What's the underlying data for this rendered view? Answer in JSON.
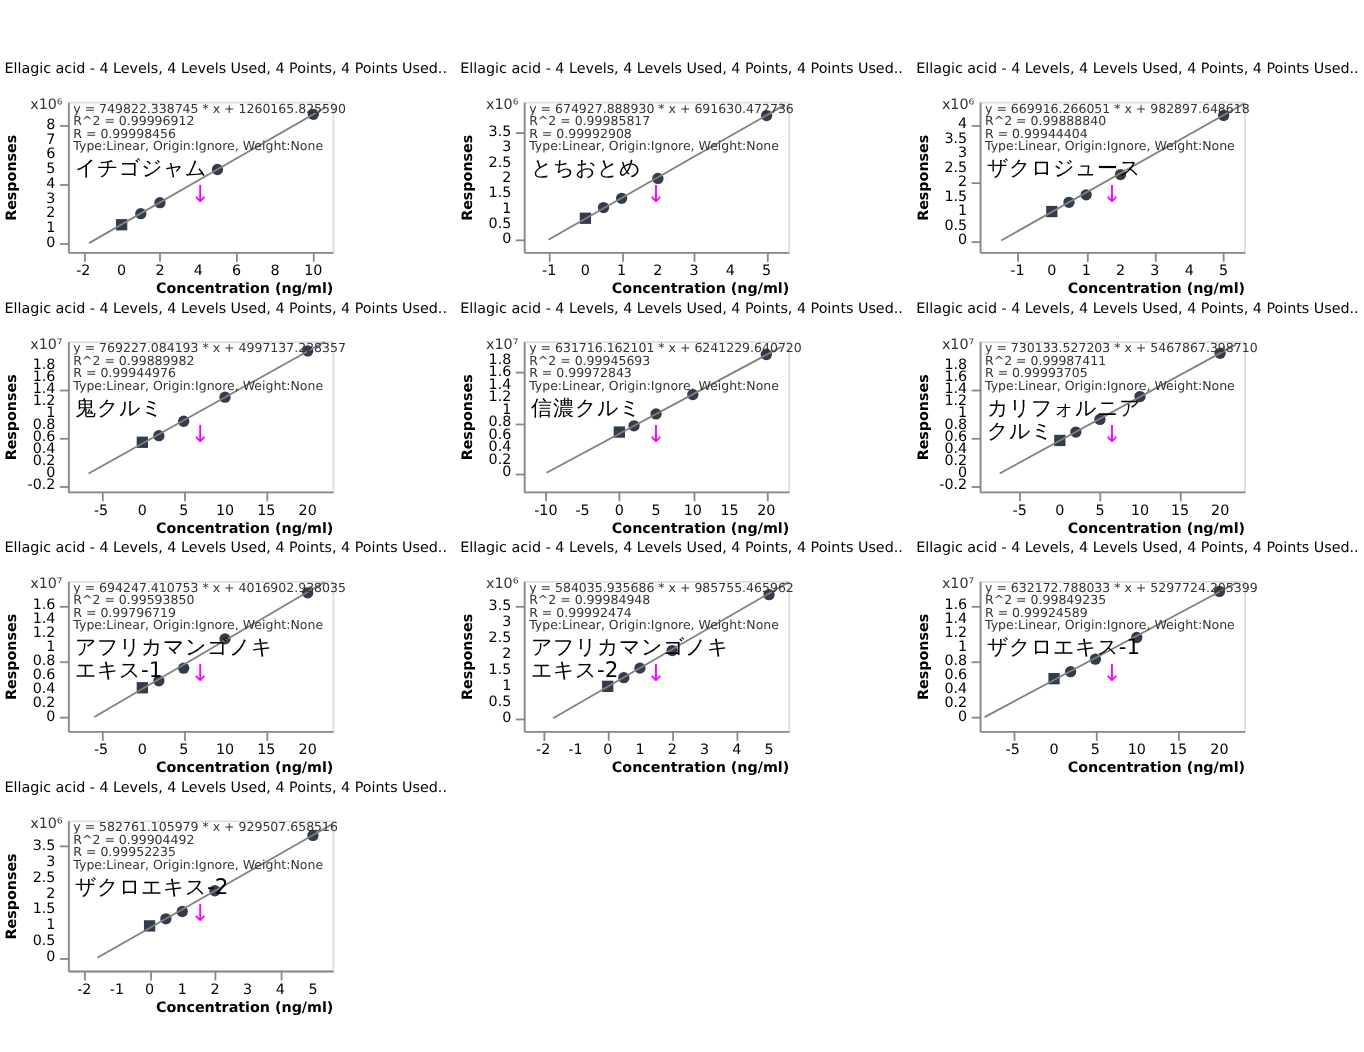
{
  "chart_data": [
    {
      "type": "scatter",
      "title": "Ellagic acid - 4 Levels, 4 Levels Used, 4 Points, 4 Points Used..",
      "xlabel": "Concentration (ng/ml)",
      "ylabel": "Responses",
      "xlim": [
        -2.8,
        11
      ],
      "xticks": [
        -2,
        0,
        2,
        4,
        6,
        8,
        10
      ],
      "ylim": [
        -0.6,
        9.6
      ],
      "yticks": [
        0,
        1,
        2,
        3,
        4,
        5,
        6,
        7,
        8
      ],
      "series": [
        {
          "type": "scatter",
          "marker": "square",
          "color": "#333c4c",
          "x": [
            0
          ],
          "values": [
            1.25
          ]
        },
        {
          "type": "scatter",
          "marker": "circle",
          "color": "#333c4c",
          "x": [
            1,
            2,
            5,
            10
          ],
          "values": [
            2.0,
            2.75,
            5.0,
            8.75
          ]
        },
        {
          "type": "line",
          "color": "#808080",
          "x": [
            -1.7,
            10.6
          ],
          "values": [
            0,
            9.2
          ]
        }
      ],
      "annotations": [
        "x10⁶",
        "y = 749822.338745 * x  + 1260165.825590",
        "R^2 = 0.99996912",
        "R = 0.99998456",
        "Type:Linear, Origin:Ignore, Weight:None",
        "イチゴジャム",
        "↓"
      ]
    },
    {
      "type": "scatter",
      "title": "Ellagic acid - 4 Levels, 4 Levels Used, 4 Points, 4 Points Used..",
      "xlabel": "Concentration (ng/ml)",
      "ylabel": "Responses",
      "xlim": [
        -1.7,
        5.6
      ],
      "xticks": [
        -1,
        0,
        1,
        2,
        3,
        4,
        5
      ],
      "ylim": [
        -0.4,
        4.5
      ],
      "yticks": [
        0,
        0.5,
        1,
        1.5,
        2,
        2.5,
        3,
        3.5
      ],
      "series": [
        {
          "type": "scatter",
          "marker": "square",
          "color": "#333c4c",
          "x": [
            0
          ],
          "values": [
            0.7
          ]
        },
        {
          "type": "scatter",
          "marker": "circle",
          "color": "#333c4c",
          "x": [
            0.5,
            1,
            2,
            5
          ],
          "values": [
            1.05,
            1.35,
            2.0,
            4.05
          ]
        },
        {
          "type": "line",
          "color": "#808080",
          "x": [
            -1.02,
            5.5
          ],
          "values": [
            0,
            4.4
          ]
        }
      ],
      "annotations": [
        "x10⁶",
        "y = 674927.888930 * x  + 691630.472736",
        "R^2 = 0.99985817",
        "R = 0.99992908",
        "Type:Linear, Origin:Ignore, Weight:None",
        "とちおとめ",
        "↓"
      ]
    },
    {
      "type": "scatter",
      "title": "Ellagic acid - 4 Levels, 4 Levels Used, 4 Points, 4 Points Used..",
      "xlabel": "Concentration (ng/ml)",
      "ylabel": "Responses",
      "xlim": [
        -2.1,
        5.6
      ],
      "xticks": [
        -1,
        0,
        1,
        2,
        3,
        4,
        5
      ],
      "ylim": [
        -0.4,
        4.8
      ],
      "yticks": [
        0,
        0.5,
        1,
        1.5,
        2,
        2.5,
        3,
        3.5,
        4
      ],
      "series": [
        {
          "type": "scatter",
          "marker": "square",
          "color": "#333c4c",
          "x": [
            0
          ],
          "values": [
            1.0
          ]
        },
        {
          "type": "scatter",
          "marker": "circle",
          "color": "#333c4c",
          "x": [
            0.5,
            1,
            2,
            5
          ],
          "values": [
            1.32,
            1.58,
            2.28,
            4.33
          ]
        },
        {
          "type": "line",
          "color": "#808080",
          "x": [
            -1.47,
            5.6
          ],
          "values": [
            0,
            4.74
          ]
        }
      ],
      "annotations": [
        "x10⁶",
        "y = 669916.266051 * x  + 982897.648618",
        "R^2 = 0.99888840",
        "R = 0.99944404",
        "Type:Linear, Origin:Ignore, Weight:None",
        "ザクロジュース",
        "↓"
      ]
    },
    {
      "type": "scatter",
      "title": "Ellagic acid - 4 Levels, 4 Levels Used, 4 Points, 4 Points Used..",
      "xlabel": "Concentration (ng/ml)",
      "ylabel": "Responses",
      "xlim": [
        -9,
        23
      ],
      "xticks": [
        -5,
        0,
        5,
        10,
        15,
        20
      ],
      "ylim": [
        -0.3,
        2.2
      ],
      "yticks": [
        -0.2,
        0,
        0.2,
        0.4,
        0.6,
        0.8,
        1,
        1.2,
        1.4,
        1.6,
        1.8
      ],
      "series": [
        {
          "type": "scatter",
          "marker": "square",
          "color": "#333c4c",
          "x": [
            0
          ],
          "values": [
            0.52
          ]
        },
        {
          "type": "scatter",
          "marker": "circle",
          "color": "#333c4c",
          "x": [
            2,
            5,
            10,
            20
          ],
          "values": [
            0.63,
            0.87,
            1.27,
            2.04
          ]
        },
        {
          "type": "line",
          "color": "#808080",
          "x": [
            -6.5,
            22
          ],
          "values": [
            0,
            2.19
          ]
        }
      ],
      "annotations": [
        "x10⁷",
        "y = 769227.084193 * x  + 4997137.228357",
        "R^2 = 0.99889982",
        "R = 0.99944976",
        "Type:Linear, Origin:Ignore, Weight:None",
        "鬼クルミ",
        "↓"
      ]
    },
    {
      "type": "scatter",
      "title": "Ellagic acid - 4 Levels, 4 Levels Used, 4 Points, 4 Points Used..",
      "xlabel": "Concentration (ng/ml)",
      "ylabel": "Responses",
      "xlim": [
        -13,
        23
      ],
      "xticks": [
        -10,
        -5,
        0,
        5,
        10,
        15,
        20
      ],
      "ylim": [
        -0.3,
        2.1
      ],
      "yticks": [
        0,
        0.2,
        0.4,
        0.6,
        0.8,
        1,
        1.2,
        1.4,
        1.6,
        1.8
      ],
      "series": [
        {
          "type": "scatter",
          "marker": "square",
          "color": "#333c4c",
          "x": [
            0
          ],
          "values": [
            0.65
          ]
        },
        {
          "type": "scatter",
          "marker": "circle",
          "color": "#333c4c",
          "x": [
            2,
            5,
            10,
            20
          ],
          "values": [
            0.75,
            0.94,
            1.25,
            1.89
          ]
        },
        {
          "type": "line",
          "color": "#808080",
          "x": [
            -9.9,
            22
          ],
          "values": [
            0,
            2.01
          ]
        }
      ],
      "annotations": [
        "x10⁷",
        "y = 631716.162101 * x  + 6241229.640720",
        "R^2 = 0.99945693",
        "R = 0.99972843",
        "Type:Linear, Origin:Ignore, Weight:None",
        "信濃クルミ",
        "↓"
      ]
    },
    {
      "type": "scatter",
      "title": "Ellagic acid - 4 Levels, 4 Levels Used, 4 Points, 4 Points Used..",
      "xlabel": "Concentration (ng/ml)",
      "ylabel": "Responses",
      "xlim": [
        -10,
        23
      ],
      "xticks": [
        -5,
        0,
        5,
        10,
        15,
        20
      ],
      "ylim": [
        -0.3,
        2.2
      ],
      "yticks": [
        -0.2,
        0,
        0.2,
        0.4,
        0.6,
        0.8,
        1,
        1.2,
        1.4,
        1.6,
        1.8
      ],
      "series": [
        {
          "type": "scatter",
          "marker": "square",
          "color": "#333c4c",
          "x": [
            0
          ],
          "values": [
            0.55
          ]
        },
        {
          "type": "scatter",
          "marker": "circle",
          "color": "#333c4c",
          "x": [
            2,
            5,
            10,
            20
          ],
          "values": [
            0.69,
            0.9,
            1.28,
            2.0
          ]
        },
        {
          "type": "line",
          "color": "#808080",
          "x": [
            -7.5,
            22
          ],
          "values": [
            0,
            2.15
          ]
        }
      ],
      "annotations": [
        "x10⁷",
        "y = 730133.527203 * x  + 5467867.398710",
        "R^2 = 0.99987411",
        "R = 0.99993705",
        "Type:Linear, Origin:Ignore, Weight:None",
        "カリフォルニア",
        "クルミ",
        "↓"
      ]
    },
    {
      "type": "scatter",
      "title": "Ellagic acid - 4 Levels, 4 Levels Used, 4 Points, 4 Points Used..",
      "xlabel": "Concentration (ng/ml)",
      "ylabel": "Responses",
      "xlim": [
        -9,
        23
      ],
      "xticks": [
        -5,
        0,
        5,
        10,
        15,
        20
      ],
      "ylim": [
        -0.2,
        1.95
      ],
      "yticks": [
        0,
        0.2,
        0.4,
        0.6,
        0.8,
        1,
        1.2,
        1.4,
        1.6
      ],
      "series": [
        {
          "type": "scatter",
          "marker": "square",
          "color": "#333c4c",
          "x": [
            0
          ],
          "values": [
            0.42
          ]
        },
        {
          "type": "scatter",
          "marker": "circle",
          "color": "#333c4c",
          "x": [
            2,
            5,
            10,
            20
          ],
          "values": [
            0.52,
            0.7,
            1.12,
            1.78
          ]
        },
        {
          "type": "line",
          "color": "#808080",
          "x": [
            -5.8,
            22
          ],
          "values": [
            0,
            1.93
          ]
        }
      ],
      "annotations": [
        "x10⁷",
        "y = 694247.410753 * x  + 4016902.938035",
        "R^2 = 0.99593850",
        "R = 0.99796719",
        "Type:Linear, Origin:Ignore, Weight:None",
        "アフリカマンゴノキ",
        "エキス-1",
        "↓"
      ]
    },
    {
      "type": "scatter",
      "title": "Ellagic acid - 4 Levels, 4 Levels Used, 4 Points, 4 Points Used..",
      "xlabel": "Concentration (ng/ml)",
      "ylabel": "Responses",
      "xlim": [
        -2.6,
        5.6
      ],
      "xticks": [
        -2,
        -1,
        0,
        1,
        2,
        3,
        4,
        5
      ],
      "ylim": [
        -0.4,
        4.3
      ],
      "yticks": [
        0,
        0.5,
        1,
        1.5,
        2,
        2.5,
        3,
        3.5
      ],
      "series": [
        {
          "type": "scatter",
          "marker": "square",
          "color": "#333c4c",
          "x": [
            0
          ],
          "values": [
            1.0
          ]
        },
        {
          "type": "scatter",
          "marker": "circle",
          "color": "#333c4c",
          "x": [
            0.5,
            1,
            2,
            5
          ],
          "values": [
            1.27,
            1.57,
            2.12,
            3.87
          ]
        },
        {
          "type": "line",
          "color": "#808080",
          "x": [
            -1.69,
            5.6
          ],
          "values": [
            0,
            4.26
          ]
        }
      ],
      "annotations": [
        "x10⁶",
        "y = 584035.935686 * x  + 985755.465962",
        "R^2 = 0.99984948",
        "R = 0.99992474",
        "Type:Linear, Origin:Ignore, Weight:None",
        "アフリカマンゴノキ",
        "エキス-2",
        "↓"
      ]
    },
    {
      "type": "scatter",
      "title": "Ellagic acid - 4 Levels, 4 Levels Used, 4 Points, 4 Points Used..",
      "xlabel": "Concentration (ng/ml)",
      "ylabel": "Responses",
      "xlim": [
        -9,
        23
      ],
      "xticks": [
        -5,
        0,
        5,
        10,
        15,
        20
      ],
      "ylim": [
        -0.2,
        1.95
      ],
      "yticks": [
        0,
        0.2,
        0.4,
        0.6,
        0.8,
        1,
        1.2,
        1.4,
        1.6
      ],
      "series": [
        {
          "type": "scatter",
          "marker": "square",
          "color": "#333c4c",
          "x": [
            0
          ],
          "values": [
            0.55
          ]
        },
        {
          "type": "scatter",
          "marker": "circle",
          "color": "#333c4c",
          "x": [
            2,
            5,
            10,
            20
          ],
          "values": [
            0.65,
            0.83,
            1.14,
            1.8
          ]
        },
        {
          "type": "line",
          "color": "#808080",
          "x": [
            -8.4,
            22
          ],
          "values": [
            0,
            1.92
          ]
        }
      ],
      "annotations": [
        "x10⁷",
        "y = 632172.788033 * x  + 5297724.205399",
        "R^2 = 0.99849235",
        "R = 0.99924589",
        "Type:Linear, Origin:Ignore, Weight:None",
        "ザクロエキス-1",
        "↓"
      ]
    },
    {
      "type": "scatter",
      "title": "Ellagic acid - 4 Levels, 4 Levels Used, 4 Points, 4 Points Used..",
      "xlabel": "Concentration (ng/ml)",
      "ylabel": "Responses",
      "xlim": [
        -2.5,
        5.6
      ],
      "xticks": [
        -2,
        -1,
        0,
        1,
        2,
        3,
        4,
        5
      ],
      "ylim": [
        -0.4,
        4.3
      ],
      "yticks": [
        0,
        0.5,
        1,
        1.5,
        2,
        2.5,
        3,
        3.5
      ],
      "series": [
        {
          "type": "scatter",
          "marker": "square",
          "color": "#333c4c",
          "x": [
            0
          ],
          "values": [
            1.0
          ]
        },
        {
          "type": "scatter",
          "marker": "circle",
          "color": "#333c4c",
          "x": [
            0.5,
            1,
            2,
            5
          ],
          "values": [
            1.22,
            1.45,
            2.1,
            3.83
          ]
        },
        {
          "type": "line",
          "color": "#808080",
          "x": [
            -1.6,
            5.6
          ],
          "values": [
            0,
            4.19
          ]
        }
      ],
      "annotations": [
        "x10⁶",
        "y = 582761.105979 * x  + 929507.658516",
        "R^2 = 0.99904492",
        "R = 0.99952235",
        "Type:Linear, Origin:Ignore, Weight:None",
        "ザクロエキス-2",
        "↓"
      ]
    }
  ]
}
